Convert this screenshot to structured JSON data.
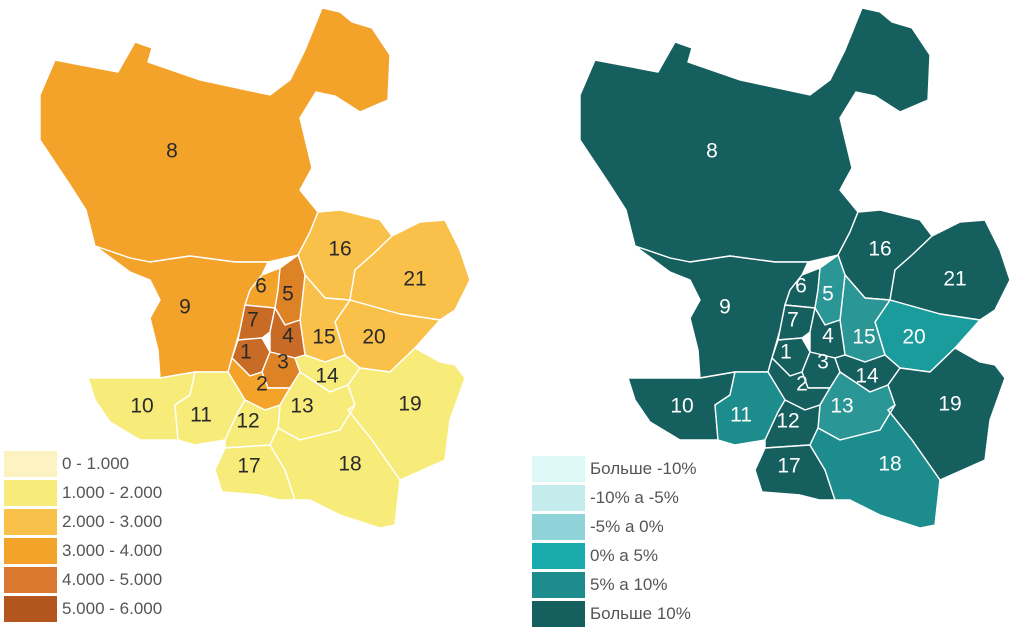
{
  "maps": [
    {
      "id": "left",
      "districts": [
        {
          "num": "8",
          "color": "#f3a22a"
        },
        {
          "num": "9",
          "color": "#f3a22a"
        },
        {
          "num": "16",
          "color": "#f9c14a"
        },
        {
          "num": "21",
          "color": "#f9c14a"
        },
        {
          "num": "20",
          "color": "#f9c14a"
        },
        {
          "num": "15",
          "color": "#f9c14a"
        },
        {
          "num": "6",
          "color": "#f3a22a"
        },
        {
          "num": "5",
          "color": "#dd8225"
        },
        {
          "num": "7",
          "color": "#c76b26"
        },
        {
          "num": "4",
          "color": "#c76b26"
        },
        {
          "num": "1",
          "color": "#c76b26"
        },
        {
          "num": "3",
          "color": "#dd8225"
        },
        {
          "num": "2",
          "color": "#f3a22a"
        },
        {
          "num": "14",
          "color": "#f7ec7a"
        },
        {
          "num": "13",
          "color": "#f7ec7a"
        },
        {
          "num": "10",
          "color": "#f7ec7a"
        },
        {
          "num": "11",
          "color": "#f7ec7a"
        },
        {
          "num": "12",
          "color": "#f7ec7a"
        },
        {
          "num": "19",
          "color": "#f7ec7a"
        },
        {
          "num": "17",
          "color": "#f7ec7a"
        },
        {
          "num": "18",
          "color": "#f7ec7a"
        }
      ],
      "legend": [
        {
          "label": "0 - 1.000",
          "color": "#fdf3c2"
        },
        {
          "label": "1.000 - 2.000",
          "color": "#f7ec7a"
        },
        {
          "label": "2.000 - 3.000",
          "color": "#f9c14a"
        },
        {
          "label": "3.000 - 4.000",
          "color": "#f3a22a"
        },
        {
          "label": "4.000 - 5.000",
          "color": "#d9782e"
        },
        {
          "label": "5.000 - 6.000",
          "color": "#b2561d"
        }
      ]
    },
    {
      "id": "right",
      "districts": [
        {
          "num": "8",
          "color": "#155f5f"
        },
        {
          "num": "9",
          "color": "#155f5f"
        },
        {
          "num": "16",
          "color": "#155f5f"
        },
        {
          "num": "21",
          "color": "#155f5f"
        },
        {
          "num": "20",
          "color": "#1a9c9c"
        },
        {
          "num": "15",
          "color": "#2a9696"
        },
        {
          "num": "6",
          "color": "#155f5f"
        },
        {
          "num": "5",
          "color": "#2a9696"
        },
        {
          "num": "7",
          "color": "#155f5f"
        },
        {
          "num": "4",
          "color": "#155f5f"
        },
        {
          "num": "1",
          "color": "#155f5f"
        },
        {
          "num": "3",
          "color": "#155f5f"
        },
        {
          "num": "2",
          "color": "#155f5f"
        },
        {
          "num": "14",
          "color": "#155f5f"
        },
        {
          "num": "13",
          "color": "#2a9696"
        },
        {
          "num": "10",
          "color": "#155f5f"
        },
        {
          "num": "11",
          "color": "#1d8c8c"
        },
        {
          "num": "12",
          "color": "#155f5f"
        },
        {
          "num": "19",
          "color": "#155f5f"
        },
        {
          "num": "17",
          "color": "#155f5f"
        },
        {
          "num": "18",
          "color": "#1d8c8c"
        }
      ],
      "legend": [
        {
          "label": "Больше -10%",
          "color": "#def8f8"
        },
        {
          "label": "-10% a -5%",
          "color": "#c5ecec"
        },
        {
          "label": "-5% a 0%",
          "color": "#8fd3d8"
        },
        {
          "label": "0% a 5%",
          "color": "#1aabad"
        },
        {
          "label": "5% a 10%",
          "color": "#1d8c8c"
        },
        {
          "label": "Больше 10%",
          "color": "#155f5f"
        }
      ]
    }
  ]
}
